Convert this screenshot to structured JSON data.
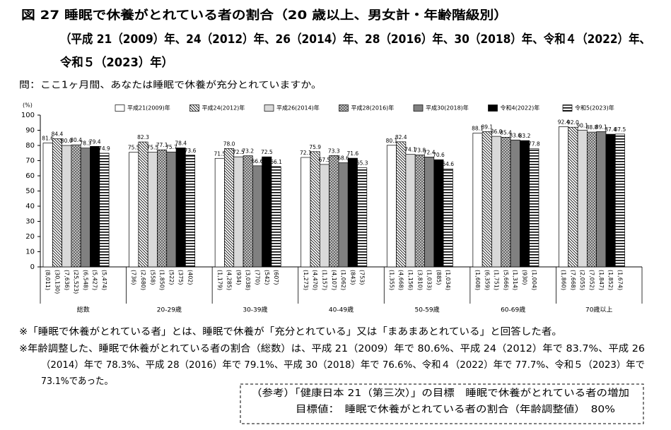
{
  "chart_data": {
    "type": "bar",
    "title": "図 27  睡眠で休養がとれている者の割合（20 歳以上、男女計・年齢階級別）",
    "subtitle": [
      "（平成 21（2009）年、24（2012）年、26（2014）年、28（2016）年、30（2018）年、令和４（2022）年、",
      "令和５（2023）年）"
    ],
    "question": "問：ここ1ヶ月間、あなたは睡眠で休養が充分とれていますか。",
    "ylabel": "(%)",
    "ylim": [
      0,
      100
    ],
    "yticks": [
      0,
      10,
      20,
      30,
      40,
      50,
      60,
      70,
      80,
      90,
      100
    ],
    "categories": [
      "総数",
      "20-29歳",
      "30-39歳",
      "40-49歳",
      "50-59歳",
      "60-69歳",
      "70歳以上"
    ],
    "series": [
      {
        "name": "平成21(2009)年",
        "color": "#ffffff",
        "pattern": "none",
        "values": [
          81.6,
          75.5,
          71.5,
          72.1,
          80.1,
          88.1,
          92.4
        ],
        "value_labels": [
          "81.6",
          "75.5",
          "71.5",
          "72.1",
          "80.1",
          "88.1",
          "92.4"
        ],
        "counts": [
          "(8,011)",
          "(736)",
          "(1,179)",
          "(1,273)",
          "(1,355)",
          "(1,608)",
          "(1,860)"
        ]
      },
      {
        "name": "平成24(2012)年",
        "color": "#ffffff",
        "pattern": "diagonal",
        "values": [
          84.4,
          82.3,
          78.0,
          75.9,
          82.4,
          89.1,
          92.0
        ],
        "value_labels": [
          "84.4",
          "82.3",
          "78.0",
          "75.9",
          "82.4",
          "89.1",
          "92.0"
        ],
        "counts": [
          "(30,130)",
          "(2,680)",
          "(4,285)",
          "(4,470)",
          "(4,668)",
          "(6,359)",
          "(7,668)"
        ]
      },
      {
        "name": "平成26(2014)年",
        "color": "#d9d9d9",
        "pattern": "none",
        "values": [
          80.0,
          75.5,
          72.5,
          67.5,
          74.1,
          86.0,
          90.1
        ],
        "value_labels": [
          "80.0",
          "75.5",
          "72.5",
          "67.5",
          "74.1",
          "86.0",
          "90.1"
        ],
        "counts": [
          "(7,636)",
          "(558)",
          "(934)",
          "(1,157)",
          "(1,156)",
          "(1,751)",
          "(2,055)"
        ]
      },
      {
        "name": "平成28(2016)年",
        "color": "#bfbfbf",
        "pattern": "dots",
        "values": [
          80.4,
          77.1,
          73.2,
          73.3,
          73.8,
          85.4,
          88.8
        ],
        "value_labels": [
          "80.4",
          "77.1",
          "73.2",
          "73.3",
          "73.8",
          "85.4",
          "88.8"
        ],
        "counts": [
          "(25,523)",
          "(1,850)",
          "(3,038)",
          "(4,107)",
          "(3,810)",
          "(5,666)",
          "(7,052)"
        ]
      },
      {
        "name": "平成30(2018)年",
        "color": "#808080",
        "pattern": "none",
        "values": [
          78.3,
          75.7,
          66.6,
          68.6,
          72.4,
          83.6,
          89.1
        ],
        "value_labels": [
          "78.3",
          "75.7",
          "66.6",
          "68.6",
          "72.4",
          "83.6",
          "89.1"
        ],
        "counts": [
          "(6,548)",
          "(522)",
          "(770)",
          "(1,062)",
          "(1,033)",
          "(1,314)",
          "(1,847)"
        ]
      },
      {
        "name": "令和4(2022)年",
        "color": "#000000",
        "pattern": "none",
        "values": [
          79.4,
          78.4,
          72.5,
          71.6,
          70.6,
          83.2,
          87.4
        ],
        "value_labels": [
          "79.4",
          "78.4",
          "72.5",
          "71.6",
          "70.6",
          "83.2",
          "87.4"
        ],
        "counts": [
          "(5,427)",
          "(375)",
          "(542)",
          "(843)",
          "(885)",
          "(930)",
          "(1,852)"
        ]
      },
      {
        "name": "令和5(2023)年",
        "color": "#ffffff",
        "pattern": "horizontal",
        "values": [
          74.9,
          73.6,
          66.1,
          65.3,
          64.6,
          77.8,
          87.5
        ],
        "value_labels": [
          "74.9",
          "73.6",
          "66.1",
          "65.3",
          "64.6",
          "77.8",
          "87.5"
        ],
        "counts": [
          "(5,474)",
          "(402)",
          "(607)",
          "(753)",
          "(1,034)",
          "(1,004)",
          "(1,674)"
        ]
      }
    ]
  },
  "notes": [
    "※「睡眠で休養がとれている者」とは、睡眠で休養が「充分とれている」又は「まあまあとれている」と回答した者。",
    "※年齢調整した、睡眠で休養がとれている者の割合（総数）は、平成 21（2009）年で 80.6%、平成 24（2012）年で 83.7%、平成 26",
    "（2014）年で 78.3%、平成 28（2016）年で 79.1%、平成 30（2018）年で 76.6%、令和４（2022）年で 77.7%、令和５（2023）年で",
    "73.1%であった。"
  ],
  "reference": [
    "（参考）「健康日本 21（第三次）」の目標　睡眠で休養がとれている者の増加",
    "目標値：　睡眠で休養がとれている者の割合（年齢調整値）　80%"
  ]
}
